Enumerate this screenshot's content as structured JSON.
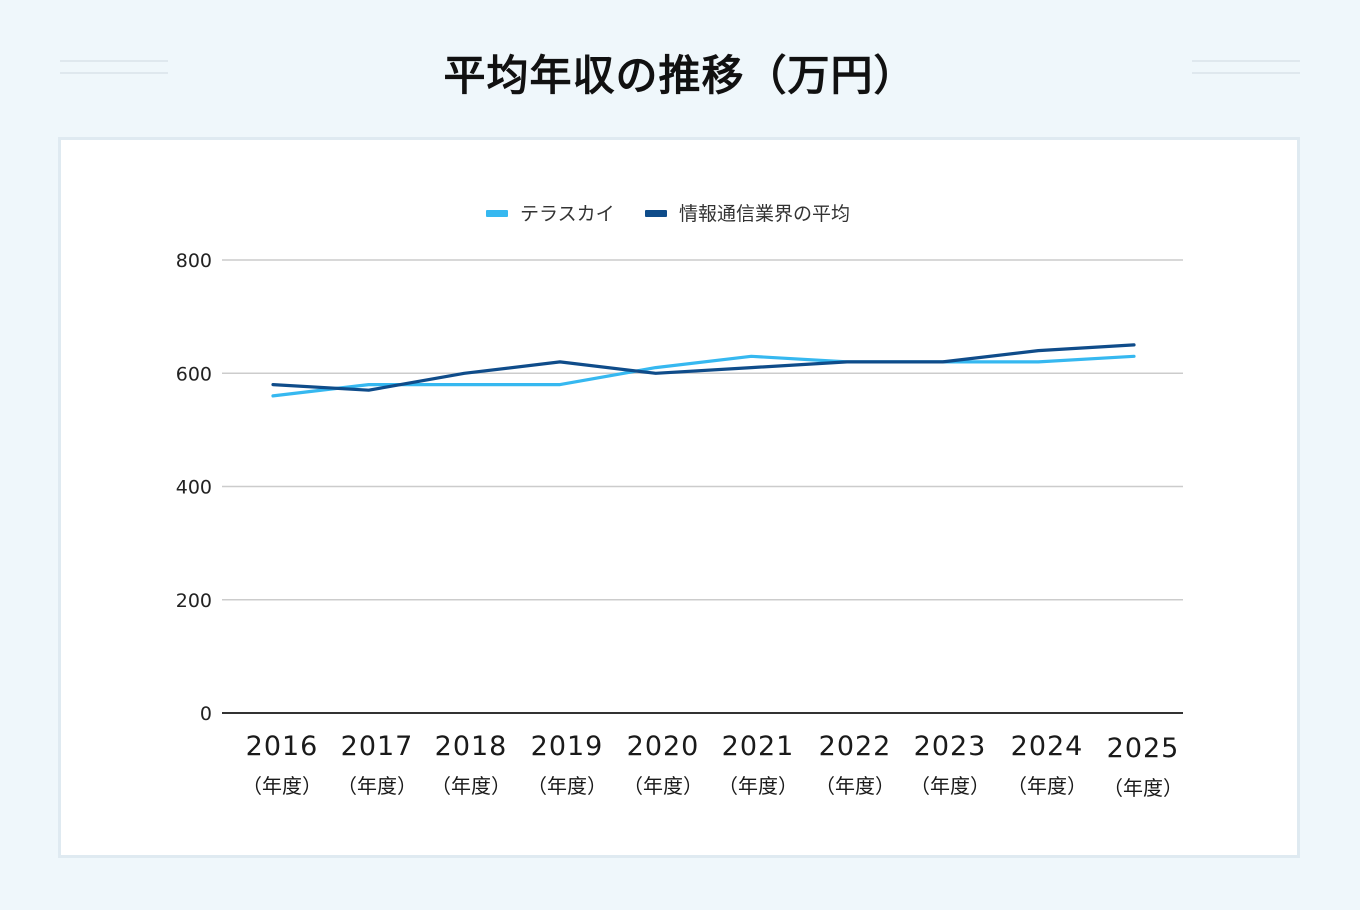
{
  "title": "平均年収の推移（万円）",
  "chart_data": {
    "type": "line",
    "categories": [
      "2016",
      "2017",
      "2018",
      "2019",
      "2020",
      "2021",
      "2022",
      "2023",
      "2024",
      "2025"
    ],
    "category_unit": "（年度）",
    "series": [
      {
        "name": "テラスカイ",
        "color": "#36b8f0",
        "values": [
          560,
          580,
          580,
          580,
          610,
          630,
          620,
          620,
          620,
          630
        ]
      },
      {
        "name": "情報通信業界の平均",
        "color": "#0f4c8a",
        "values": [
          580,
          570,
          600,
          620,
          600,
          610,
          620,
          620,
          640,
          650
        ]
      }
    ],
    "yticks": [
      0,
      200,
      400,
      600,
      800
    ],
    "ylim": [
      0,
      800
    ],
    "grid": true,
    "legend": "top-center",
    "xlabel": "",
    "ylabel": ""
  }
}
